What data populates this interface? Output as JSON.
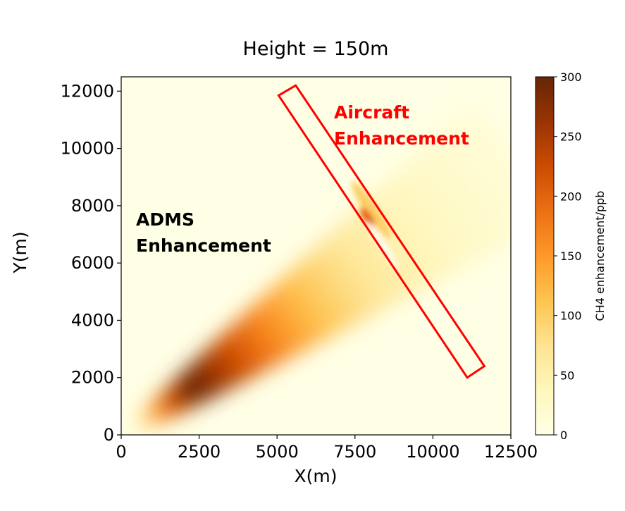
{
  "chart_data": {
    "type": "heatmap",
    "title": "Height = 150m",
    "xlabel": "X(m)",
    "ylabel": "Y(m)",
    "xlim": [
      0,
      12500
    ],
    "ylim": [
      0,
      12500
    ],
    "x_ticks": [
      0,
      2500,
      5000,
      7500,
      10000,
      12500
    ],
    "y_ticks": [
      0,
      2000,
      4000,
      6000,
      8000,
      10000,
      12000
    ],
    "grid": false,
    "colormap": "YlOrBr",
    "colorbar": {
      "label": "CH4 enhancement/ppb",
      "range": [
        0,
        300
      ],
      "ticks": [
        0,
        50,
        100,
        150,
        200,
        250,
        300
      ],
      "colors": [
        "#ffffe5",
        "#fff7bc",
        "#fee391",
        "#fec44f",
        "#fe9929",
        "#ec7014",
        "#cc4c02",
        "#993404",
        "#662506"
      ]
    },
    "plume": {
      "name": "ADMS Enhancement",
      "peak_value": 300,
      "peak_x": 2400,
      "peak_y": 1900,
      "source_x": 800,
      "source_y": 500,
      "direction_end_x": 12500,
      "direction_end_y": 9500
    },
    "aircraft_segment": {
      "peak_x": 7900,
      "peak_y": 7600,
      "peak_value": 200
    },
    "flight_box_corners": [
      [
        5050,
        11850
      ],
      [
        5600,
        12200
      ],
      [
        11650,
        2400
      ],
      [
        11100,
        2000
      ]
    ],
    "annotations": [
      {
        "text": "Aircraft",
        "color": "#ff0000"
      },
      {
        "text": "Enhancement",
        "color": "#ff0000"
      },
      {
        "text": "ADMS",
        "color": "#000000"
      },
      {
        "text": "Enhancement",
        "color": "#000000"
      }
    ],
    "box_color": "#ff0000"
  }
}
